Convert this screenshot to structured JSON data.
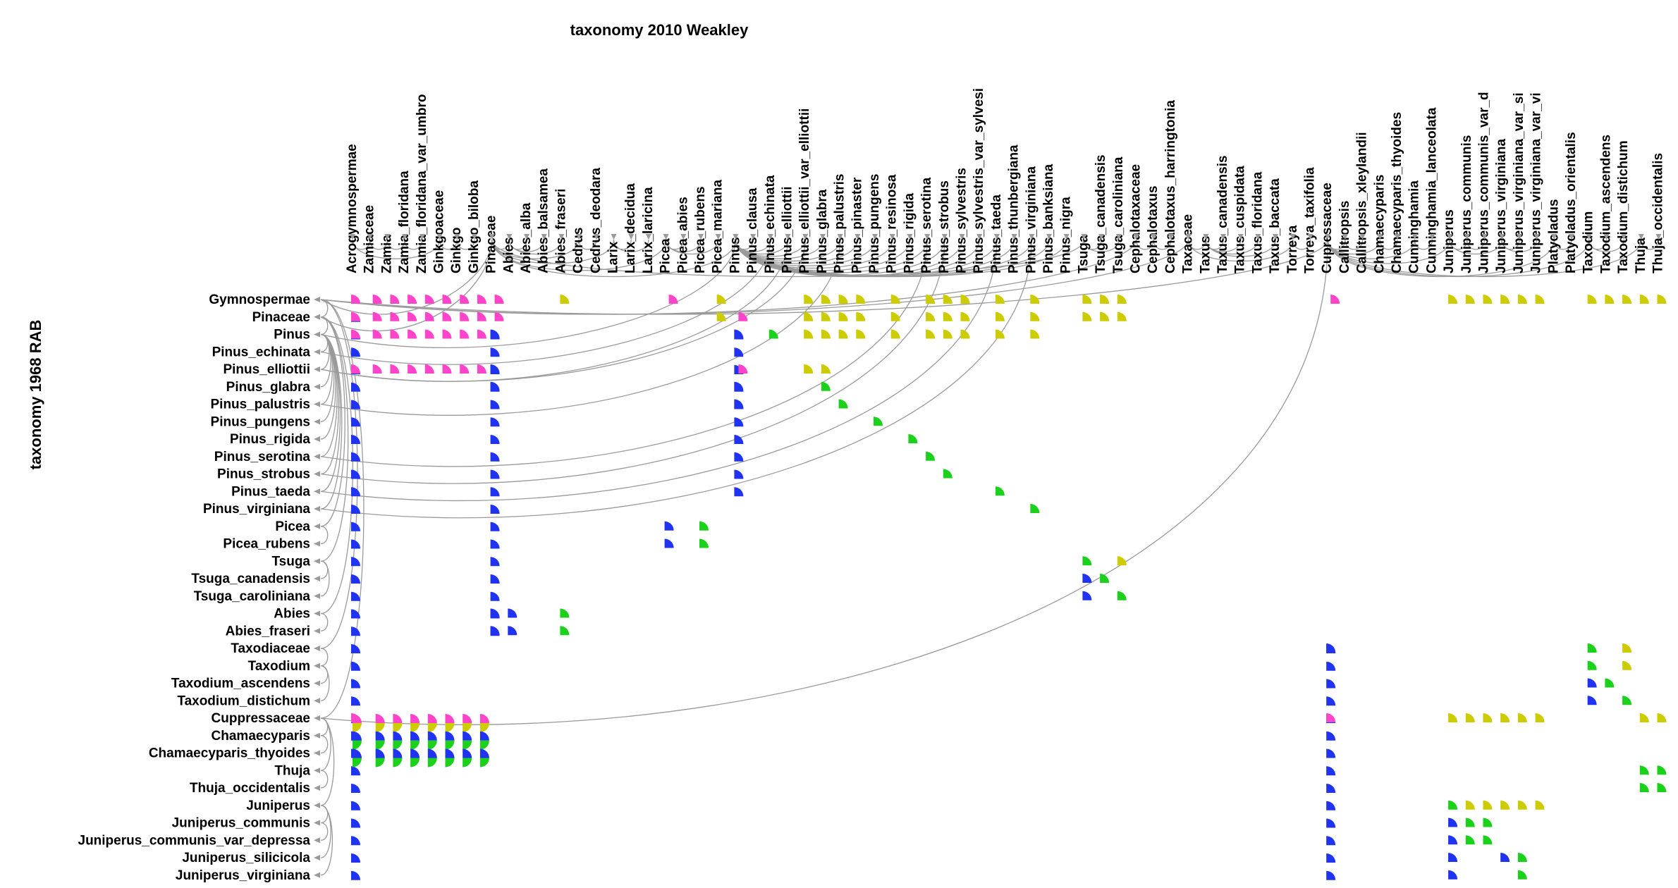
{
  "titles": {
    "top": "taxonomy 2010 Weakley",
    "side": "taxonomy 1968 RAB"
  },
  "colors": {
    "blue": "#1f33f0",
    "green": "#1bd11b",
    "magenta": "#ff44cc",
    "olive": "#cccc00",
    "edge": "#9a9a9a",
    "arrow": "#9a9a9a"
  },
  "columns": [
    "Acrogymnospermae",
    "Zamiaceae",
    "Zamia",
    "Zamia_floridana",
    "Zamia_floridana_var_umbro",
    "Ginkgoaceae",
    "Ginkgo",
    "Ginkgo_biloba",
    "Pinaceae",
    "Abies",
    "Abies_alba",
    "Abies_balsamea",
    "Abies_fraseri",
    "Cedrus",
    "Cedrus_deodara",
    "Larix",
    "Larix_decidua",
    "Larix_laricina",
    "Picea",
    "Picea_abies",
    "Picea_rubens",
    "Picea_mariana",
    "Pinus",
    "Pinus_clausa",
    "Pinus_echinata",
    "Pinus_elliottii",
    "Pinus_elliottii_var_elliottii",
    "Pinus_glabra",
    "Pinus_palustris",
    "Pinus_pinaster",
    "Pinus_pungens",
    "Pinus_resinosa",
    "Pinus_rigida",
    "Pinus_serotina",
    "Pinus_strobus",
    "Pinus_sylvestris",
    "Pinus_sylvestris_var_sylvesi",
    "Pinus_taeda",
    "Pinus_thunbergiana",
    "Pinus_virginiana",
    "Pinus_banksiana",
    "Pinus_nigra",
    "Tsuga",
    "Tsuga_canadensis",
    "Tsuga_caroliniana",
    "Cephalotaxaceae",
    "Cephalotaxus",
    "Cephalotaxus_harringtonia",
    "Taxaceae",
    "Taxus",
    "Taxus_canadensis",
    "Taxus_cuspidata",
    "Taxus_floridana",
    "Taxus_baccata",
    "Torreya",
    "Torreya_taxifolia",
    "Cupressaceae",
    "Callitropsis",
    "Callitropsis_xleylandii",
    "Chamaecyparis",
    "Chamaecyparis_thyoides",
    "Cunninghamia",
    "Cunninghamia_lanceolata",
    "Juniperus",
    "Juniperus_communis",
    "Juniperus_communis_var_d",
    "Juniperus_virginiana",
    "Juniperus_virginiana_var_si",
    "Juniperus_virginiana_var_vi",
    "Platycladus",
    "Platycladus_orientalis",
    "Taxodium",
    "Taxodium_ascendens",
    "Taxodium_distichum",
    "Thuja",
    "Thuja_occidentalis"
  ],
  "rows": [
    "Gymnospermae",
    "Pinaceae",
    "Pinus",
    "Pinus_echinata",
    "Pinus_elliottii",
    "Pinus_glabra",
    "Pinus_palustris",
    "Pinus_pungens",
    "Pinus_rigida",
    "Pinus_serotina",
    "Pinus_strobus",
    "Pinus_taeda",
    "Pinus_virginiana",
    "Picea",
    "Picea_rubens",
    "Tsuga",
    "Tsuga_canadensis",
    "Tsuga_caroliniana",
    "Abies",
    "Abies_fraseri",
    "Taxodiaceae",
    "Taxodium",
    "Taxodium_ascendens",
    "Taxodium_distichum",
    "Cuppressaceae",
    "Chamaecyparis",
    "Chamaecyparis_thyoides",
    "Thuja",
    "Thuja_occidentalis",
    "Juniperus",
    "Juniperus_communis",
    "Juniperus_communis_var_depressa",
    "Juniperus_silicicola",
    "Juniperus_virginiana"
  ],
  "column_tree": [
    [
      1,
      0
    ],
    [
      2,
      1
    ],
    [
      3,
      2
    ],
    [
      4,
      3
    ],
    [
      5,
      0
    ],
    [
      6,
      5
    ],
    [
      7,
      6
    ],
    [
      9,
      8
    ],
    [
      10,
      9
    ],
    [
      11,
      9
    ],
    [
      12,
      9
    ],
    [
      13,
      8
    ],
    [
      14,
      13
    ],
    [
      15,
      8
    ],
    [
      16,
      15
    ],
    [
      17,
      15
    ],
    [
      18,
      8
    ],
    [
      19,
      18
    ],
    [
      20,
      18
    ],
    [
      21,
      18
    ],
    [
      22,
      8
    ],
    [
      23,
      22
    ],
    [
      24,
      22
    ],
    [
      25,
      22
    ],
    [
      26,
      22
    ],
    [
      27,
      22
    ],
    [
      28,
      22
    ],
    [
      29,
      22
    ],
    [
      30,
      22
    ],
    [
      31,
      22
    ],
    [
      32,
      22
    ],
    [
      33,
      22
    ],
    [
      34,
      22
    ],
    [
      35,
      22
    ],
    [
      36,
      22
    ],
    [
      37,
      22
    ],
    [
      38,
      22
    ],
    [
      39,
      22
    ],
    [
      40,
      22
    ],
    [
      41,
      22
    ],
    [
      42,
      8
    ],
    [
      43,
      42
    ],
    [
      44,
      42
    ],
    [
      46,
      45
    ],
    [
      47,
      46
    ],
    [
      49,
      48
    ],
    [
      50,
      49
    ],
    [
      51,
      49
    ],
    [
      52,
      49
    ],
    [
      53,
      49
    ],
    [
      54,
      48
    ],
    [
      55,
      54
    ],
    [
      57,
      56
    ],
    [
      58,
      57
    ],
    [
      59,
      56
    ],
    [
      60,
      59
    ],
    [
      61,
      56
    ],
    [
      62,
      61
    ],
    [
      63,
      56
    ],
    [
      64,
      63
    ],
    [
      65,
      64
    ],
    [
      66,
      63
    ],
    [
      67,
      66
    ],
    [
      68,
      66
    ],
    [
      69,
      56
    ],
    [
      70,
      69
    ],
    [
      71,
      56
    ],
    [
      72,
      71
    ],
    [
      73,
      71
    ],
    [
      74,
      56
    ],
    [
      75,
      74
    ]
  ],
  "column_roots_to_top": [
    [
      8,
      0
    ],
    [
      45,
      0
    ],
    [
      48,
      0
    ],
    [
      56,
      0
    ]
  ],
  "row_tree": [
    [
      1,
      0
    ],
    [
      2,
      1
    ],
    [
      3,
      2
    ],
    [
      4,
      2
    ],
    [
      5,
      2
    ],
    [
      6,
      2
    ],
    [
      7,
      2
    ],
    [
      8,
      2
    ],
    [
      9,
      2
    ],
    [
      10,
      2
    ],
    [
      11,
      2
    ],
    [
      12,
      2
    ],
    [
      13,
      1
    ],
    [
      14,
      13
    ],
    [
      15,
      1
    ],
    [
      16,
      15
    ],
    [
      17,
      15
    ],
    [
      18,
      1
    ],
    [
      19,
      18
    ],
    [
      20,
      0
    ],
    [
      21,
      20
    ],
    [
      22,
      21
    ],
    [
      23,
      21
    ],
    [
      24,
      0
    ],
    [
      25,
      24
    ],
    [
      26,
      25
    ],
    [
      27,
      24
    ],
    [
      28,
      27
    ],
    [
      29,
      24
    ],
    [
      30,
      29
    ],
    [
      31,
      30
    ],
    [
      32,
      29
    ],
    [
      33,
      29
    ]
  ],
  "cross_links": [
    [
      0,
      8
    ],
    [
      0,
      56
    ],
    [
      0,
      45
    ],
    [
      0,
      48
    ],
    [
      1,
      8
    ],
    [
      2,
      22
    ],
    [
      24,
      56
    ],
    [
      4,
      25
    ],
    [
      4,
      26
    ],
    [
      3,
      24
    ],
    [
      6,
      28
    ],
    [
      9,
      33
    ],
    [
      10,
      34
    ],
    [
      11,
      37
    ],
    [
      12,
      39
    ]
  ],
  "cells": [
    [
      0,
      0,
      "m"
    ],
    [
      0,
      1,
      "m"
    ],
    [
      0,
      2,
      "m"
    ],
    [
      0,
      3,
      "m"
    ],
    [
      0,
      4,
      "m"
    ],
    [
      0,
      5,
      "m"
    ],
    [
      0,
      6,
      "m"
    ],
    [
      0,
      7,
      "m"
    ],
    [
      0,
      8,
      "m"
    ],
    [
      0,
      12,
      "o"
    ],
    [
      0,
      18,
      "m"
    ],
    [
      0,
      21,
      "o"
    ],
    [
      0,
      26,
      "o"
    ],
    [
      0,
      27,
      "o"
    ],
    [
      0,
      28,
      "o"
    ],
    [
      0,
      29,
      "o"
    ],
    [
      0,
      31,
      "o"
    ],
    [
      0,
      33,
      "o"
    ],
    [
      0,
      34,
      "o"
    ],
    [
      0,
      35,
      "o"
    ],
    [
      0,
      37,
      "o"
    ],
    [
      0,
      39,
      "o"
    ],
    [
      0,
      42,
      "o"
    ],
    [
      0,
      43,
      "o"
    ],
    [
      0,
      44,
      "o"
    ],
    [
      0,
      56,
      "m"
    ],
    [
      0,
      63,
      "o"
    ],
    [
      0,
      64,
      "o"
    ],
    [
      0,
      65,
      "o"
    ],
    [
      0,
      66,
      "o"
    ],
    [
      0,
      67,
      "o"
    ],
    [
      0,
      68,
      "o"
    ],
    [
      0,
      71,
      "o"
    ],
    [
      0,
      72,
      "o"
    ],
    [
      0,
      73,
      "o"
    ],
    [
      0,
      74,
      "o"
    ],
    [
      0,
      75,
      "o"
    ],
    [
      1,
      0,
      "m"
    ],
    [
      1,
      1,
      "m"
    ],
    [
      1,
      2,
      "m"
    ],
    [
      1,
      3,
      "m"
    ],
    [
      1,
      4,
      "m"
    ],
    [
      1,
      5,
      "m"
    ],
    [
      1,
      6,
      "m"
    ],
    [
      1,
      7,
      "m"
    ],
    [
      1,
      8,
      "m"
    ],
    [
      1,
      21,
      "o"
    ],
    [
      1,
      22,
      "m"
    ],
    [
      1,
      26,
      "o"
    ],
    [
      1,
      27,
      "o"
    ],
    [
      1,
      28,
      "o"
    ],
    [
      1,
      29,
      "o"
    ],
    [
      1,
      31,
      "o"
    ],
    [
      1,
      33,
      "o"
    ],
    [
      1,
      34,
      "o"
    ],
    [
      1,
      35,
      "o"
    ],
    [
      1,
      37,
      "o"
    ],
    [
      1,
      39,
      "o"
    ],
    [
      1,
      42,
      "o"
    ],
    [
      1,
      43,
      "o"
    ],
    [
      1,
      44,
      "o"
    ],
    [
      2,
      0,
      "m"
    ],
    [
      2,
      1,
      "m"
    ],
    [
      2,
      2,
      "m"
    ],
    [
      2,
      3,
      "m"
    ],
    [
      2,
      4,
      "m"
    ],
    [
      2,
      5,
      "m"
    ],
    [
      2,
      6,
      "m"
    ],
    [
      2,
      7,
      "m"
    ],
    [
      2,
      8,
      "b"
    ],
    [
      2,
      22,
      "b"
    ],
    [
      2,
      24,
      "g"
    ],
    [
      2,
      26,
      "o"
    ],
    [
      2,
      27,
      "o"
    ],
    [
      2,
      28,
      "o"
    ],
    [
      2,
      29,
      "o"
    ],
    [
      2,
      31,
      "o"
    ],
    [
      2,
      33,
      "o"
    ],
    [
      2,
      34,
      "o"
    ],
    [
      2,
      35,
      "o"
    ],
    [
      2,
      37,
      "o"
    ],
    [
      2,
      39,
      "o"
    ],
    [
      4,
      0,
      "m"
    ],
    [
      4,
      1,
      "m"
    ],
    [
      4,
      2,
      "m"
    ],
    [
      4,
      3,
      "m"
    ],
    [
      4,
      4,
      "m"
    ],
    [
      4,
      5,
      "m"
    ],
    [
      4,
      6,
      "m"
    ],
    [
      4,
      7,
      "m"
    ],
    [
      4,
      8,
      "b"
    ],
    [
      4,
      22,
      "m"
    ],
    [
      4,
      26,
      "o"
    ],
    [
      4,
      27,
      "o"
    ],
    [
      5,
      8,
      "b"
    ],
    [
      5,
      22,
      "b"
    ],
    [
      5,
      27,
      "g"
    ],
    [
      6,
      22,
      "b"
    ],
    [
      6,
      28,
      "g"
    ],
    [
      7,
      30,
      "g"
    ],
    [
      8,
      32,
      "g"
    ],
    [
      9,
      33,
      "g"
    ],
    [
      10,
      34,
      "g"
    ],
    [
      11,
      37,
      "g"
    ],
    [
      12,
      39,
      "g"
    ],
    [
      13,
      18,
      "b"
    ],
    [
      13,
      20,
      "g"
    ],
    [
      14,
      18,
      "b"
    ],
    [
      14,
      20,
      "g"
    ],
    [
      15,
      42,
      "g"
    ],
    [
      15,
      44,
      "o"
    ],
    [
      16,
      42,
      "b"
    ],
    [
      16,
      43,
      "g"
    ],
    [
      17,
      42,
      "b"
    ],
    [
      17,
      44,
      "g"
    ],
    [
      18,
      8,
      "b"
    ],
    [
      18,
      9,
      "b"
    ],
    [
      18,
      12,
      "g"
    ],
    [
      19,
      8,
      "b"
    ],
    [
      19,
      9,
      "b"
    ],
    [
      19,
      12,
      "g"
    ],
    [
      20,
      56,
      "b"
    ],
    [
      20,
      71,
      "g"
    ],
    [
      20,
      73,
      "o"
    ],
    [
      21,
      71,
      "g"
    ],
    [
      21,
      73,
      "o"
    ],
    [
      22,
      71,
      "b"
    ],
    [
      22,
      72,
      "g"
    ],
    [
      23,
      71,
      "b"
    ],
    [
      23,
      73,
      "g"
    ],
    [
      24,
      0,
      "m"
    ],
    [
      24,
      56,
      "m"
    ],
    [
      24,
      63,
      "o"
    ],
    [
      24,
      64,
      "o"
    ],
    [
      24,
      65,
      "o"
    ],
    [
      24,
      66,
      "o"
    ],
    [
      24,
      67,
      "o"
    ],
    [
      24,
      68,
      "o"
    ],
    [
      24,
      74,
      "o"
    ],
    [
      24,
      75,
      "o"
    ],
    [
      27,
      74,
      "g"
    ],
    [
      27,
      75,
      "g"
    ],
    [
      28,
      74,
      "g"
    ],
    [
      28,
      75,
      "g"
    ],
    [
      29,
      63,
      "g"
    ],
    [
      29,
      64,
      "o"
    ],
    [
      29,
      65,
      "o"
    ],
    [
      29,
      66,
      "o"
    ],
    [
      29,
      67,
      "o"
    ],
    [
      29,
      68,
      "o"
    ],
    [
      30,
      63,
      "b"
    ],
    [
      30,
      64,
      "g"
    ],
    [
      30,
      65,
      "g"
    ],
    [
      31,
      63,
      "b"
    ],
    [
      31,
      64,
      "g"
    ],
    [
      31,
      65,
      "g"
    ],
    [
      32,
      63,
      "b"
    ],
    [
      32,
      66,
      "b"
    ],
    [
      32,
      67,
      "g"
    ],
    [
      33,
      63,
      "b"
    ],
    [
      33,
      67,
      "g"
    ]
  ],
  "full_columns": [
    {
      "col": 0,
      "from": 1,
      "to": 33,
      "color": "b"
    },
    {
      "col": 8,
      "from": 2,
      "to": 19,
      "color": "b"
    },
    {
      "col": 22,
      "from": 2,
      "to": 11,
      "color": "b"
    },
    {
      "col": 56,
      "from": 20,
      "to": 33,
      "color": "b"
    }
  ],
  "band_rows": [
    24,
    25,
    26
  ],
  "band_cols": [
    0,
    1,
    2,
    3,
    4,
    5,
    6,
    7
  ],
  "band_patterns": {
    "24": [
      "m",
      "o"
    ],
    "25": [
      "b",
      "g"
    ],
    "26": [
      "b",
      "g"
    ]
  }
}
